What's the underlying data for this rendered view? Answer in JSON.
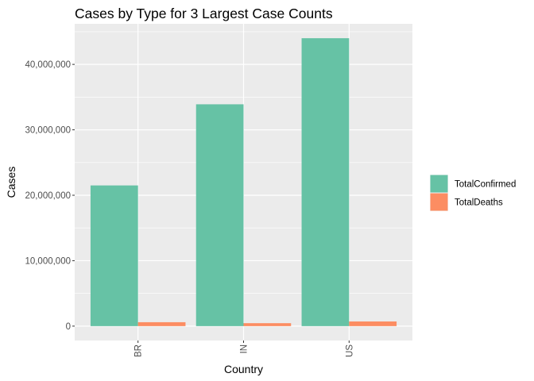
{
  "chart_data": {
    "type": "bar",
    "title": "Cases by Type for 3 Largest Case Counts",
    "xlabel": "Country",
    "ylabel": "Cases",
    "categories": [
      "BR",
      "IN",
      "US"
    ],
    "series": [
      {
        "name": "TotalConfirmed",
        "values": [
          21500000,
          33900000,
          44000000
        ],
        "color": "#66c2a5"
      },
      {
        "name": "TotalDeaths",
        "values": [
          600000,
          450000,
          710000
        ],
        "color": "#fc8d62"
      }
    ],
    "ylim": [
      -2200000,
      46200000
    ],
    "yticks": [
      0,
      10000000,
      20000000,
      30000000,
      40000000
    ],
    "ytick_labels": [
      "0",
      "10,000,000",
      "20,000,000",
      "30,000,000",
      "40,000,000"
    ],
    "x_tick_rotation": "vertical",
    "grid": true,
    "panel_background": "#ebebeb",
    "grid_color": "#ffffff",
    "legend_position": "right"
  }
}
